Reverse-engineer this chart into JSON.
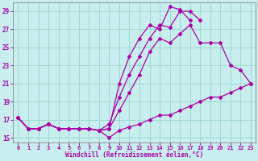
{
  "xlabel": "Windchill (Refroidissement éolien,°C)",
  "xlim": [
    -0.5,
    23.5
  ],
  "ylim": [
    14.5,
    30.0
  ],
  "yticks": [
    15,
    17,
    19,
    21,
    23,
    25,
    27,
    29
  ],
  "xticks": [
    0,
    1,
    2,
    3,
    4,
    5,
    6,
    7,
    8,
    9,
    10,
    11,
    12,
    13,
    14,
    15,
    16,
    17,
    18,
    19,
    20,
    21,
    22,
    23
  ],
  "background_color": "#c8eef0",
  "grid_color": "#a0d8d0",
  "line_color": "#aa00aa",
  "lines": [
    {
      "x": [
        0,
        1,
        2,
        3,
        4,
        5,
        6,
        7,
        8,
        9,
        10,
        11,
        12,
        13,
        14,
        15,
        16,
        17,
        18,
        19,
        20,
        21,
        22,
        23
      ],
      "y": [
        17.2,
        16.0,
        16.0,
        16.5,
        16.0,
        16.0,
        16.0,
        16.0,
        15.8,
        15.0,
        15.8,
        16.2,
        16.5,
        17.0,
        17.5,
        17.5,
        18.0,
        18.5,
        19.0,
        19.5,
        19.5,
        20.0,
        20.5,
        21.0
      ]
    },
    {
      "x": [
        0,
        1,
        2,
        3,
        4,
        5,
        6,
        7,
        8,
        9,
        10,
        11,
        12,
        13,
        14,
        15,
        16,
        17,
        18,
        19,
        20,
        21,
        22,
        23
      ],
      "y": [
        17.2,
        16.0,
        16.0,
        16.5,
        16.0,
        16.0,
        16.0,
        16.0,
        15.8,
        16.0,
        18.0,
        20.0,
        22.0,
        24.5,
        26.0,
        25.5,
        26.5,
        27.5,
        25.5,
        25.5,
        25.5,
        23.0,
        22.5,
        21.0
      ]
    },
    {
      "x": [
        0,
        1,
        2,
        3,
        4,
        5,
        6,
        7,
        8,
        9,
        10,
        11,
        12,
        13,
        14,
        15,
        16,
        17,
        18,
        19,
        20,
        21,
        22,
        23
      ],
      "y": [
        17.2,
        16.0,
        16.0,
        16.5,
        16.0,
        16.0,
        16.0,
        16.0,
        15.8,
        16.5,
        19.5,
        22.0,
        24.0,
        26.0,
        27.5,
        27.2,
        29.0,
        29.0,
        28.0,
        null,
        null,
        null,
        null,
        null
      ]
    },
    {
      "x": [
        0,
        1,
        2,
        3,
        4,
        5,
        6,
        7,
        8,
        9,
        10,
        11,
        12,
        13,
        14,
        15,
        16,
        17,
        18,
        19,
        20,
        21,
        22,
        23
      ],
      "y": [
        17.2,
        16.0,
        16.0,
        16.5,
        16.0,
        16.0,
        16.0,
        16.0,
        15.8,
        16.0,
        21.0,
        24.0,
        26.0,
        27.5,
        27.0,
        29.5,
        29.2,
        28.0,
        null,
        null,
        null,
        null,
        null,
        null
      ]
    }
  ]
}
